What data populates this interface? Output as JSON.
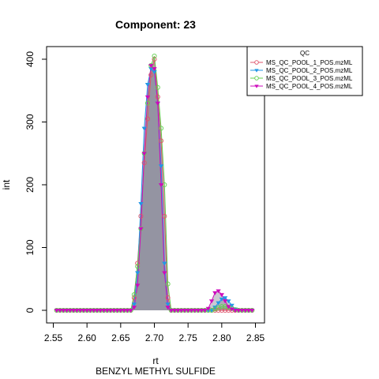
{
  "chart_data": {
    "type": "line",
    "title": "Component: 23",
    "xlabel": "rt",
    "ylabel": "int",
    "subtitle": "BENZYL METHYL SULFIDE",
    "xlim": [
      2.55,
      2.85
    ],
    "ylim": [
      0,
      400
    ],
    "xticks": [
      2.55,
      2.6,
      2.65,
      2.7,
      2.75,
      2.8,
      2.85
    ],
    "xtick_labels": [
      "2.55",
      "2.60",
      "2.65",
      "2.70",
      "2.75",
      "2.80",
      "2.85"
    ],
    "yticks": [
      0,
      100,
      200,
      300,
      400
    ],
    "ytick_labels": [
      "0",
      "100",
      "200",
      "300",
      "400"
    ],
    "legend": {
      "title": "QC",
      "position": "top-right"
    },
    "series": [
      {
        "name": "MS_QC_POOL_1_POS.mzML",
        "color": "#DF536B",
        "marker": "circle",
        "x": [
          2.555,
          2.56,
          2.565,
          2.57,
          2.575,
          2.58,
          2.585,
          2.59,
          2.595,
          2.6,
          2.605,
          2.61,
          2.615,
          2.62,
          2.625,
          2.63,
          2.635,
          2.64,
          2.645,
          2.65,
          2.655,
          2.66,
          2.665,
          2.67,
          2.675,
          2.68,
          2.685,
          2.69,
          2.695,
          2.7,
          2.705,
          2.71,
          2.715,
          2.72,
          2.725,
          2.73,
          2.735,
          2.74,
          2.745,
          2.75,
          2.755,
          2.76,
          2.765,
          2.77,
          2.775,
          2.78,
          2.785,
          2.79,
          2.795,
          2.8,
          2.805,
          2.81,
          2.815,
          2.82,
          2.825,
          2.83,
          2.835,
          2.84,
          2.845
        ],
        "y": [
          0,
          0,
          0,
          0,
          0,
          0,
          0,
          0,
          0,
          0,
          0,
          0,
          0,
          0,
          0,
          0,
          0,
          0,
          0,
          0,
          0,
          0,
          0,
          20,
          75,
          150,
          235,
          305,
          375,
          400,
          340,
          270,
          150,
          20,
          0,
          0,
          0,
          0,
          0,
          0,
          0,
          0,
          0,
          0,
          0,
          0,
          0,
          0,
          0,
          0,
          0,
          0,
          0,
          0,
          0,
          0,
          0,
          0,
          0
        ]
      },
      {
        "name": "MS_QC_POOL_2_POS.mzML",
        "color": "#2297E6",
        "marker": "triangle-down",
        "x": [
          2.555,
          2.56,
          2.565,
          2.57,
          2.575,
          2.58,
          2.585,
          2.59,
          2.595,
          2.6,
          2.605,
          2.61,
          2.615,
          2.62,
          2.625,
          2.63,
          2.635,
          2.64,
          2.645,
          2.65,
          2.655,
          2.66,
          2.665,
          2.67,
          2.675,
          2.68,
          2.685,
          2.69,
          2.695,
          2.7,
          2.705,
          2.71,
          2.715,
          2.72,
          2.725,
          2.73,
          2.735,
          2.74,
          2.745,
          2.75,
          2.755,
          2.76,
          2.765,
          2.77,
          2.775,
          2.78,
          2.785,
          2.79,
          2.795,
          2.8,
          2.805,
          2.81,
          2.815,
          2.82,
          2.825,
          2.83,
          2.835,
          2.84,
          2.845
        ],
        "y": [
          0,
          0,
          0,
          0,
          0,
          0,
          0,
          0,
          0,
          0,
          0,
          0,
          0,
          0,
          0,
          0,
          0,
          0,
          0,
          0,
          0,
          0,
          0,
          10,
          60,
          170,
          290,
          360,
          385,
          380,
          330,
          230,
          75,
          10,
          0,
          0,
          0,
          0,
          0,
          0,
          0,
          0,
          0,
          0,
          0,
          0,
          0,
          5,
          12,
          18,
          20,
          15,
          8,
          2,
          0,
          0,
          0,
          0,
          0
        ]
      },
      {
        "name": "MS_QC_POOL_3_POS.mzML",
        "color": "#61D04F",
        "marker": "circle",
        "x": [
          2.555,
          2.56,
          2.565,
          2.57,
          2.575,
          2.58,
          2.585,
          2.59,
          2.595,
          2.6,
          2.605,
          2.61,
          2.615,
          2.62,
          2.625,
          2.63,
          2.635,
          2.64,
          2.645,
          2.65,
          2.655,
          2.66,
          2.665,
          2.67,
          2.675,
          2.68,
          2.685,
          2.69,
          2.695,
          2.7,
          2.705,
          2.71,
          2.715,
          2.72,
          2.725,
          2.73,
          2.735,
          2.74,
          2.745,
          2.75,
          2.755,
          2.76,
          2.765,
          2.77,
          2.775,
          2.78,
          2.785,
          2.79,
          2.795,
          2.8,
          2.805,
          2.81,
          2.815,
          2.82,
          2.825,
          2.83,
          2.835,
          2.84,
          2.845
        ],
        "y": [
          0,
          0,
          0,
          0,
          0,
          0,
          0,
          0,
          0,
          0,
          0,
          0,
          0,
          0,
          0,
          0,
          0,
          0,
          0,
          0,
          0,
          0,
          0,
          25,
          70,
          130,
          250,
          330,
          390,
          405,
          355,
          290,
          200,
          42,
          0,
          0,
          0,
          0,
          0,
          0,
          0,
          0,
          0,
          0,
          0,
          0,
          0,
          2,
          4,
          6,
          6,
          5,
          3,
          1,
          0,
          0,
          0,
          0,
          0
        ]
      },
      {
        "name": "MS_QC_POOL_4_POS.mzML",
        "color": "#CD0BBC",
        "marker": "triangle-down",
        "x": [
          2.555,
          2.56,
          2.565,
          2.57,
          2.575,
          2.58,
          2.585,
          2.59,
          2.595,
          2.6,
          2.605,
          2.61,
          2.615,
          2.62,
          2.625,
          2.63,
          2.635,
          2.64,
          2.645,
          2.65,
          2.655,
          2.66,
          2.665,
          2.67,
          2.675,
          2.68,
          2.685,
          2.69,
          2.695,
          2.7,
          2.705,
          2.71,
          2.715,
          2.72,
          2.725,
          2.73,
          2.735,
          2.74,
          2.745,
          2.75,
          2.755,
          2.76,
          2.765,
          2.77,
          2.775,
          2.78,
          2.785,
          2.79,
          2.795,
          2.8,
          2.805,
          2.81,
          2.815,
          2.82,
          2.825,
          2.83,
          2.835,
          2.84,
          2.845
        ],
        "y": [
          0,
          0,
          0,
          0,
          0,
          0,
          0,
          0,
          0,
          0,
          0,
          0,
          0,
          0,
          0,
          0,
          0,
          0,
          0,
          0,
          0,
          0,
          0,
          5,
          40,
          130,
          250,
          340,
          390,
          385,
          330,
          200,
          60,
          5,
          0,
          0,
          0,
          0,
          0,
          0,
          0,
          0,
          0,
          0,
          0,
          3,
          15,
          28,
          31,
          25,
          15,
          6,
          2,
          0,
          0,
          0,
          0,
          0,
          0
        ]
      }
    ]
  }
}
